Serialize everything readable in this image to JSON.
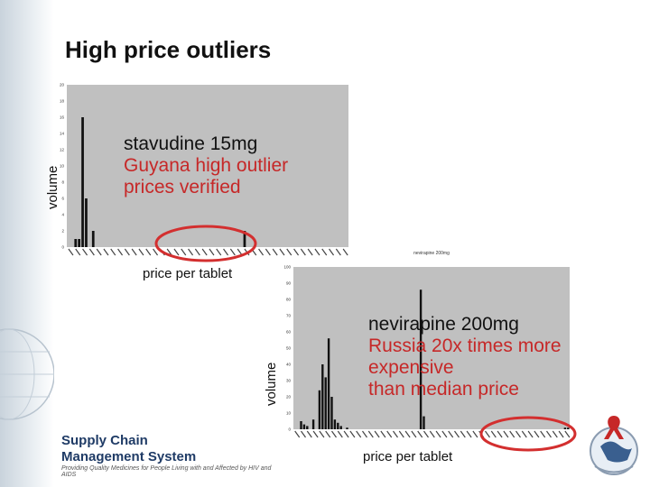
{
  "slide": {
    "title": "High price outliers",
    "accent": "#c62828"
  },
  "chart_data": [
    {
      "type": "bar",
      "title": "stavudine 15mg",
      "ylabel": "volume",
      "xlabel": "price per tablet",
      "ylim": [
        0,
        20
      ],
      "yticks": [
        0,
        2,
        4,
        6,
        8,
        10,
        12,
        14,
        16,
        18,
        20
      ],
      "values": [
        0,
        0,
        1,
        1,
        16,
        6,
        0,
        2,
        0,
        0,
        0,
        0,
        0,
        0,
        0,
        0,
        0,
        0,
        0,
        0,
        0,
        0,
        0,
        0,
        0,
        0,
        0,
        0,
        0,
        0,
        0,
        0,
        0,
        0,
        0,
        0,
        0,
        0,
        0,
        0,
        0,
        0,
        0,
        0,
        0,
        0,
        0,
        0,
        0,
        0,
        2,
        0,
        0,
        0,
        0,
        0,
        0,
        0,
        0,
        0,
        0,
        0,
        0,
        0,
        0,
        0,
        0,
        0,
        0,
        0,
        0,
        0,
        0,
        0,
        0,
        0,
        0,
        0,
        0,
        0
      ],
      "annotation": [
        "stavudine 15mg",
        "Guyana high outlier",
        "prices verified"
      ],
      "grid": false
    },
    {
      "type": "bar",
      "title": "nevirapine 200mg",
      "ylabel": "volume",
      "xlabel": "price per tablet",
      "ylim": [
        0,
        100
      ],
      "yticks": [
        0,
        10,
        20,
        30,
        40,
        50,
        60,
        70,
        80,
        90,
        100
      ],
      "values": [
        0,
        0,
        5,
        3,
        2,
        0,
        6,
        0,
        24,
        40,
        32,
        56,
        20,
        6,
        4,
        2,
        0,
        1,
        0,
        0,
        0,
        0,
        0,
        0,
        0,
        0,
        0,
        0,
        0,
        0,
        0,
        0,
        0,
        0,
        0,
        0,
        0,
        0,
        0,
        0,
        0,
        86,
        8,
        0,
        0,
        0,
        0,
        0,
        0,
        0,
        0,
        0,
        0,
        0,
        0,
        0,
        0,
        0,
        0,
        0,
        0,
        0,
        0,
        0,
        0,
        0,
        0,
        0,
        0,
        0,
        0,
        0,
        0,
        0,
        0,
        0,
        0,
        0,
        0,
        0,
        0,
        0,
        0,
        0,
        0,
        0,
        0,
        0,
        1,
        1
      ],
      "annotation": [
        "nevirapine 200mg",
        "Russia 20x times more",
        "expensive",
        "than median price"
      ],
      "grid": false
    }
  ],
  "logo": {
    "line1": "Supply Chain",
    "line2": "Management System",
    "tagline": "Providing Quality Medicines for People Living with and Affected by HIV and AIDS"
  }
}
